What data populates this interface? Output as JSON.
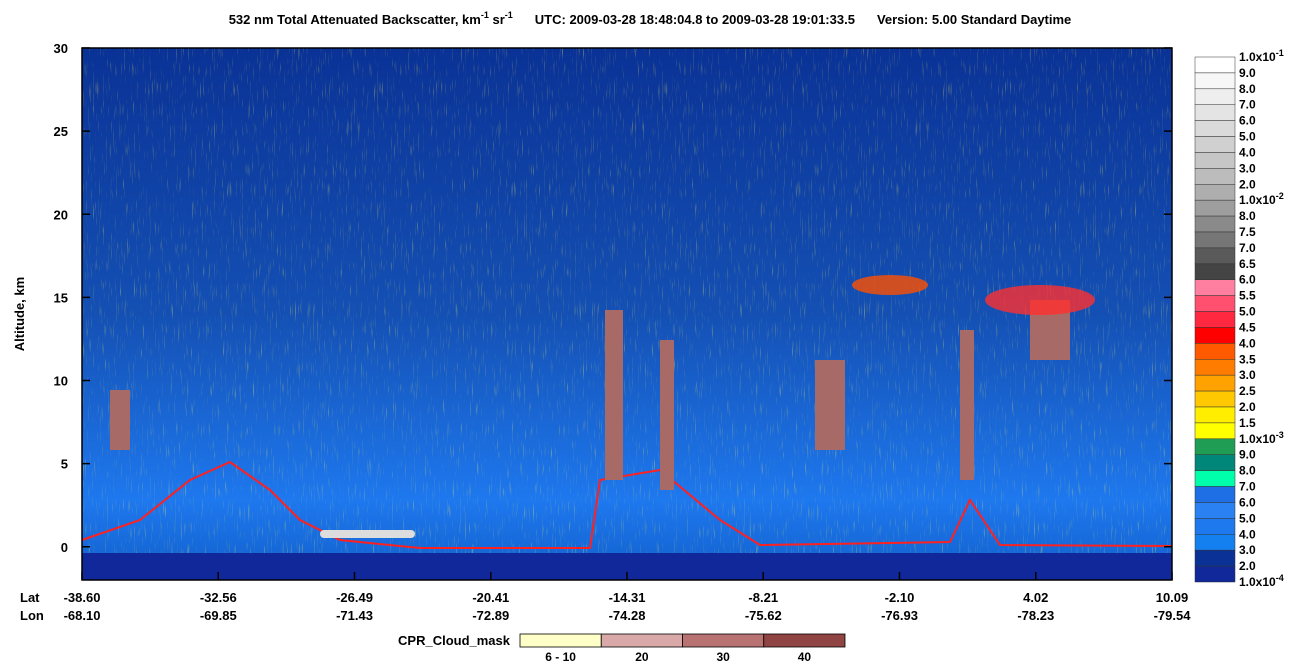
{
  "chart_data": {
    "type": "curtain",
    "title_parts": [
      "532 nm Total Attenuated Backscatter, km",
      "-1",
      " sr",
      "-1"
    ],
    "utc": "UTC:  2009-03-28 18:48:04.8  to  2009-03-28 19:01:33.5",
    "version": "Version: 5.00  Standard  Daytime",
    "y_label": "Altitude, km",
    "ylim": [
      -2,
      30
    ],
    "yticks": [
      0,
      5,
      10,
      15,
      20,
      25,
      30
    ],
    "lat_label": "Lat",
    "lon_label": "Lon",
    "lat_ticks": [
      "-38.60",
      "-32.56",
      "-26.49",
      "-20.41",
      "-14.31",
      "-8.21",
      "-2.10",
      "4.02",
      "10.09"
    ],
    "lon_ticks": [
      "-68.10",
      "-69.85",
      "-71.43",
      "-72.89",
      "-74.28",
      "-75.62",
      "-76.93",
      "-78.23",
      "-79.54"
    ],
    "colorbar": {
      "labels": [
        {
          "text": "1.0x10",
          "sup": "-1"
        },
        {
          "text": "9.0"
        },
        {
          "text": "8.0"
        },
        {
          "text": "7.0"
        },
        {
          "text": "6.0"
        },
        {
          "text": "5.0"
        },
        {
          "text": "4.0"
        },
        {
          "text": "3.0"
        },
        {
          "text": "2.0"
        },
        {
          "text": "1.0x10",
          "sup": "-2"
        },
        {
          "text": "8.0"
        },
        {
          "text": "7.5"
        },
        {
          "text": "7.0"
        },
        {
          "text": "6.5"
        },
        {
          "text": "6.0"
        },
        {
          "text": "5.5"
        },
        {
          "text": "5.0"
        },
        {
          "text": "4.5"
        },
        {
          "text": "4.0"
        },
        {
          "text": "3.5"
        },
        {
          "text": "3.0"
        },
        {
          "text": "2.5"
        },
        {
          "text": "2.0"
        },
        {
          "text": "1.5"
        },
        {
          "text": "1.0x10",
          "sup": "-3"
        },
        {
          "text": "9.0"
        },
        {
          "text": "8.0"
        },
        {
          "text": "7.0"
        },
        {
          "text": "6.0"
        },
        {
          "text": "5.0"
        },
        {
          "text": "4.0"
        },
        {
          "text": "3.0"
        },
        {
          "text": "2.0"
        },
        {
          "text": "1.0x10",
          "sup": "-4"
        }
      ],
      "colors": [
        "#ffffff",
        "#f7f7f7",
        "#eeeeee",
        "#e4e4e4",
        "#dadada",
        "#d0d0d0",
        "#c6c6c6",
        "#bcbcbc",
        "#aeaeae",
        "#9e9e9e",
        "#8a8a8a",
        "#767676",
        "#5a5a5a",
        "#444444",
        "#ff7fa0",
        "#ff5070",
        "#ff2840",
        "#ff0000",
        "#ff5a00",
        "#ff7c00",
        "#ffa200",
        "#ffc800",
        "#ffee00",
        "#ffff00",
        "#1f9d55",
        "#00877a",
        "#00ffaa",
        "#1e6ee6",
        "#2a82f2",
        "#1e78ee",
        "#1480f0",
        "#0a3296",
        "#10289a"
      ]
    },
    "mask_legend": {
      "title": "CPR_Cloud_mask",
      "labels": [
        "6 - 10",
        "20",
        "30",
        "40"
      ],
      "colors": [
        "#ffffc8",
        "#d9a9a9",
        "#b87272",
        "#904444"
      ]
    }
  }
}
